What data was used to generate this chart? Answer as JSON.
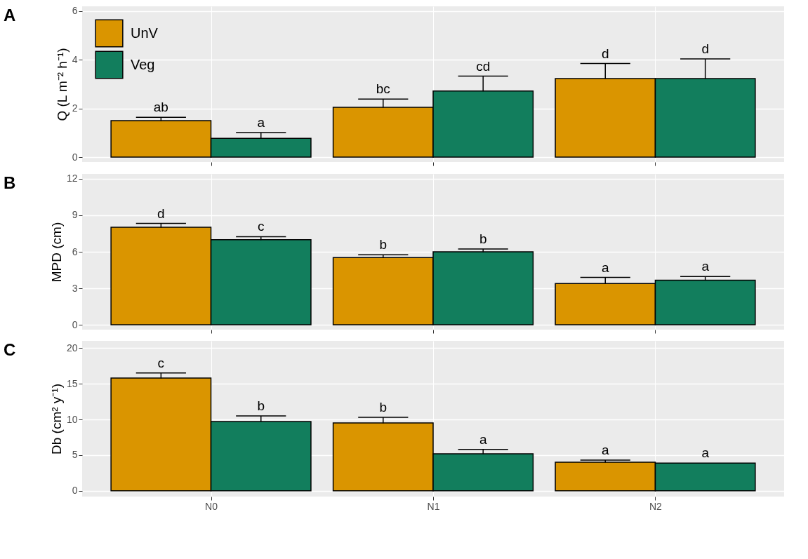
{
  "chart_data": [
    {
      "type": "bar",
      "ylabel": "Q (L m⁻² h⁻¹)",
      "annotations": [
        "A"
      ],
      "categories": [
        null,
        null,
        null
      ],
      "ylim": [
        -0.2,
        6.2
      ],
      "yticks": [
        0,
        2,
        4,
        6
      ],
      "grid": true,
      "legend": "top left",
      "tick_labels": "y",
      "series": [
        {
          "name": "UnV",
          "color": "#da9500",
          "values": [
            1.5,
            2.05,
            3.23
          ],
          "errors": [
            [
              1.5,
              1.64
            ],
            [
              2.05,
              2.39
            ],
            [
              3.23,
              3.85
            ]
          ],
          "value_labels": [
            "ab",
            "bc",
            "d"
          ]
        },
        {
          "name": "Veg",
          "color": "#127e5d",
          "values": [
            0.77,
            2.72,
            3.23
          ],
          "errors": [
            [
              0.77,
              1.01
            ],
            [
              2.72,
              3.33
            ],
            [
              3.23,
              4.04
            ]
          ],
          "value_labels": [
            "a",
            "cd",
            "d"
          ]
        }
      ]
    },
    {
      "type": "bar",
      "ylabel": "MPD (cm)",
      "annotations": [
        "B"
      ],
      "categories": [
        null,
        null,
        null
      ],
      "ylim": [
        -0.4,
        12.4
      ],
      "yticks": [
        0,
        3,
        6,
        9,
        12
      ],
      "grid": true,
      "tick_labels": "y",
      "series": [
        {
          "name": "UnV",
          "color": "#da9500",
          "values": [
            8.02,
            5.53,
            3.39
          ],
          "errors": [
            [
              8.02,
              8.33
            ],
            [
              5.53,
              5.76
            ],
            [
              3.39,
              3.89
            ]
          ],
          "value_labels": [
            "d",
            "b",
            "a"
          ]
        },
        {
          "name": "Veg",
          "color": "#127e5d",
          "values": [
            7.0,
            6.0,
            3.66
          ],
          "errors": [
            [
              7.0,
              7.24
            ],
            [
              6.0,
              6.23
            ],
            [
              3.66,
              3.97
            ]
          ],
          "value_labels": [
            "c",
            "b",
            "a"
          ]
        }
      ]
    },
    {
      "type": "bar",
      "ylabel": "Db (cm² y⁻¹)",
      "annotations": [
        "C"
      ],
      "categories": [
        "N0",
        "N1",
        "N2"
      ],
      "ylim": [
        -0.8,
        21
      ],
      "yticks": [
        0,
        5,
        10,
        15,
        20
      ],
      "grid": true,
      "series": [
        {
          "name": "UnV",
          "color": "#da9500",
          "values": [
            15.8,
            9.5,
            4.0
          ],
          "errors": [
            [
              15.8,
              16.5
            ],
            [
              9.5,
              10.3
            ],
            [
              4.0,
              4.3
            ]
          ],
          "value_labels": [
            "c",
            "b",
            "a"
          ]
        },
        {
          "name": "Veg",
          "color": "#127e5d",
          "values": [
            9.7,
            5.2,
            3.9
          ],
          "errors": [
            [
              9.7,
              10.5
            ],
            [
              5.2,
              5.8
            ],
            null
          ],
          "value_labels": [
            "b",
            "a",
            "a"
          ]
        }
      ]
    }
  ]
}
